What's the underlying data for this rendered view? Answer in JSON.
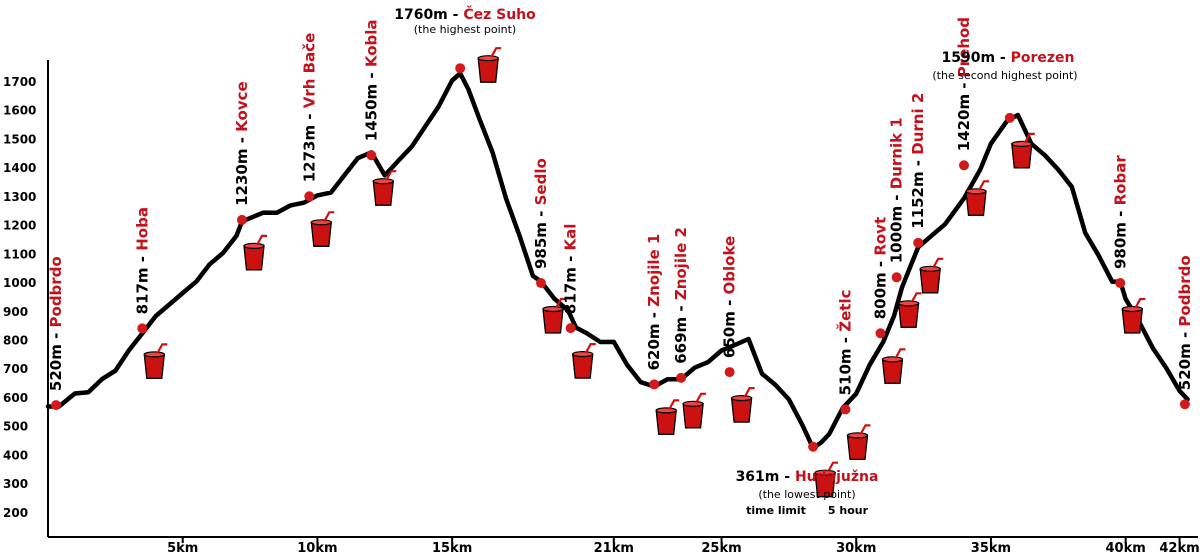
{
  "chart_data": {
    "type": "line",
    "x_unit": "km",
    "y_unit": "m",
    "xlim": [
      0,
      42.5
    ],
    "ylim": [
      130,
      1780
    ],
    "yticks": [
      "1700",
      "1600",
      "1500",
      "1400",
      "1300",
      "1200",
      "1100",
      "1000",
      "900",
      "800",
      "700",
      "600",
      "500",
      "400",
      "300",
      "200"
    ],
    "ytick_values": [
      1700,
      1600,
      1500,
      1400,
      1300,
      1200,
      1100,
      1000,
      900,
      800,
      700,
      600,
      500,
      400,
      300,
      200
    ],
    "xticks": [
      "5km",
      "10km",
      "15km",
      "21km",
      "25km",
      "30km",
      "35km",
      "40km",
      "42km"
    ],
    "xtick_values": [
      5,
      10,
      15,
      21,
      25,
      30,
      35,
      40,
      42
    ],
    "profile": [
      [
        0,
        570
      ],
      [
        0.4,
        575
      ],
      [
        1,
        610
      ],
      [
        1.5,
        625
      ],
      [
        2,
        660
      ],
      [
        2.5,
        700
      ],
      [
        3,
        760
      ],
      [
        3.5,
        830
      ],
      [
        4,
        880
      ],
      [
        4.5,
        930
      ],
      [
        5,
        960
      ],
      [
        5.5,
        1010
      ],
      [
        6,
        1060
      ],
      [
        6.5,
        1110
      ],
      [
        7,
        1160
      ],
      [
        7.2,
        1220
      ],
      [
        8,
        1240
      ],
      [
        8.5,
        1250
      ],
      [
        9,
        1265
      ],
      [
        9.5,
        1285
      ],
      [
        10,
        1300
      ],
      [
        10.5,
        1320
      ],
      [
        11,
        1370
      ],
      [
        11.5,
        1440
      ],
      [
        12,
        1450
      ],
      [
        12.5,
        1380
      ],
      [
        13,
        1420
      ],
      [
        13.5,
        1480
      ],
      [
        14,
        1540
      ],
      [
        14.5,
        1620
      ],
      [
        15,
        1700
      ],
      [
        15.3,
        1735
      ],
      [
        15.6,
        1670
      ],
      [
        16,
        1580
      ],
      [
        16.5,
        1450
      ],
      [
        17,
        1300
      ],
      [
        17.5,
        1160
      ],
      [
        18,
        1030
      ],
      [
        18.3,
        1000
      ],
      [
        18.8,
        950
      ],
      [
        19.3,
        900
      ],
      [
        19.6,
        850
      ],
      [
        20,
        820
      ],
      [
        20.5,
        800
      ],
      [
        21,
        790
      ],
      [
        21.5,
        720
      ],
      [
        22,
        650
      ],
      [
        22.5,
        645
      ],
      [
        23,
        660
      ],
      [
        23.5,
        670
      ],
      [
        24,
        700
      ],
      [
        24.5,
        730
      ],
      [
        25,
        760
      ],
      [
        25.5,
        790
      ],
      [
        26,
        800
      ],
      [
        26.5,
        690
      ],
      [
        27,
        640
      ],
      [
        27.5,
        600
      ],
      [
        28,
        500
      ],
      [
        28.4,
        430
      ],
      [
        28.7,
        440
      ],
      [
        29,
        480
      ],
      [
        29.5,
        560
      ],
      [
        30,
        620
      ],
      [
        30.5,
        710
      ],
      [
        31,
        800
      ],
      [
        31.4,
        880
      ],
      [
        31.7,
        990
      ],
      [
        32,
        1050
      ],
      [
        32.3,
        1130
      ],
      [
        32.8,
        1160
      ],
      [
        33.3,
        1210
      ],
      [
        34,
        1290
      ],
      [
        34.6,
        1400
      ],
      [
        35,
        1480
      ],
      [
        35.6,
        1570
      ],
      [
        36,
        1580
      ],
      [
        36.5,
        1490
      ],
      [
        37,
        1440
      ],
      [
        37.5,
        1400
      ],
      [
        38,
        1330
      ],
      [
        38.5,
        1180
      ],
      [
        39,
        1090
      ],
      [
        39.5,
        1010
      ],
      [
        39.8,
        1000
      ],
      [
        40,
        950
      ],
      [
        40.5,
        860
      ],
      [
        41,
        780
      ],
      [
        41.5,
        700
      ],
      [
        42,
        630
      ],
      [
        42.3,
        590
      ]
    ],
    "stations": [
      {
        "km": 0.3,
        "elev": 575,
        "alt": "520m",
        "name": "Podbrdo",
        "drink": false
      },
      {
        "km": 3.5,
        "elev": 842,
        "alt": "817m",
        "name": "Hoba",
        "drink": true
      },
      {
        "km": 7.2,
        "elev": 1220,
        "alt": "1230m",
        "name": "Kovce",
        "drink": true
      },
      {
        "km": 9.7,
        "elev": 1302,
        "alt": "1273m",
        "name": "Vrh Bače",
        "drink": true
      },
      {
        "km": 12,
        "elev": 1445,
        "alt": "1450m",
        "name": "Kobla",
        "drink": true
      },
      {
        "km": 15.3,
        "elev": 1748,
        "alt": "1760m",
        "name": "Čez Suho",
        "drink": true
      },
      {
        "km": 18.3,
        "elev": 1000,
        "alt": "985m",
        "name": "Sedlo",
        "drink": true
      },
      {
        "km": 19.4,
        "elev": 843,
        "alt": "817m",
        "name": "Kal",
        "drink": true
      },
      {
        "km": 22.5,
        "elev": 647,
        "alt": "620m",
        "name": "Znojile 1",
        "drink": true
      },
      {
        "km": 23.5,
        "elev": 670,
        "alt": "669m",
        "name": "Znojile 2",
        "drink": true
      },
      {
        "km": 25.3,
        "elev": 690,
        "alt": "650m",
        "name": "Obloke",
        "drink": true
      },
      {
        "km": 28.4,
        "elev": 430,
        "alt": "361m",
        "name": "Hudajužna",
        "drink": true
      },
      {
        "km": 29.6,
        "elev": 560,
        "alt": "510m",
        "name": "Žetlc",
        "drink": true
      },
      {
        "km": 30.9,
        "elev": 825,
        "alt": "800m",
        "name": "Rovt",
        "drink": true
      },
      {
        "km": 31.5,
        "elev": 1020,
        "alt": "1000m",
        "name": "Durnik 1",
        "drink": true
      },
      {
        "km": 32.3,
        "elev": 1140,
        "alt": "1152m",
        "name": "Durni 2",
        "drink": true
      },
      {
        "km": 34,
        "elev": 1410,
        "alt": "1420m",
        "name": "Prehod",
        "drink": true
      },
      {
        "km": 35.7,
        "elev": 1575,
        "alt": "1590m",
        "name": "Porezen",
        "drink": true
      },
      {
        "km": 39.8,
        "elev": 1000,
        "alt": "980m",
        "name": "Robar",
        "drink": true
      },
      {
        "km": 42.2,
        "elev": 578,
        "alt": "520m",
        "name": "Podbrdo",
        "drink": false
      }
    ],
    "highlights": {
      "highest": {
        "alt": "1760m",
        "name": "Čez Suho",
        "note": "(the highest point)"
      },
      "second": {
        "alt": "1590m",
        "name": "Porezen",
        "note": "(the second highest point)"
      },
      "lowest": {
        "alt": "361m",
        "name": "Hudajužna",
        "note": "(the lowest point)"
      }
    },
    "time_limit_label": "time limit",
    "time_limit_value": "5 hour",
    "colors": {
      "line": "#000000",
      "station": "#d11a1a",
      "name": "#c4111b",
      "cup": "#cc1111",
      "axis": "#000000"
    }
  }
}
